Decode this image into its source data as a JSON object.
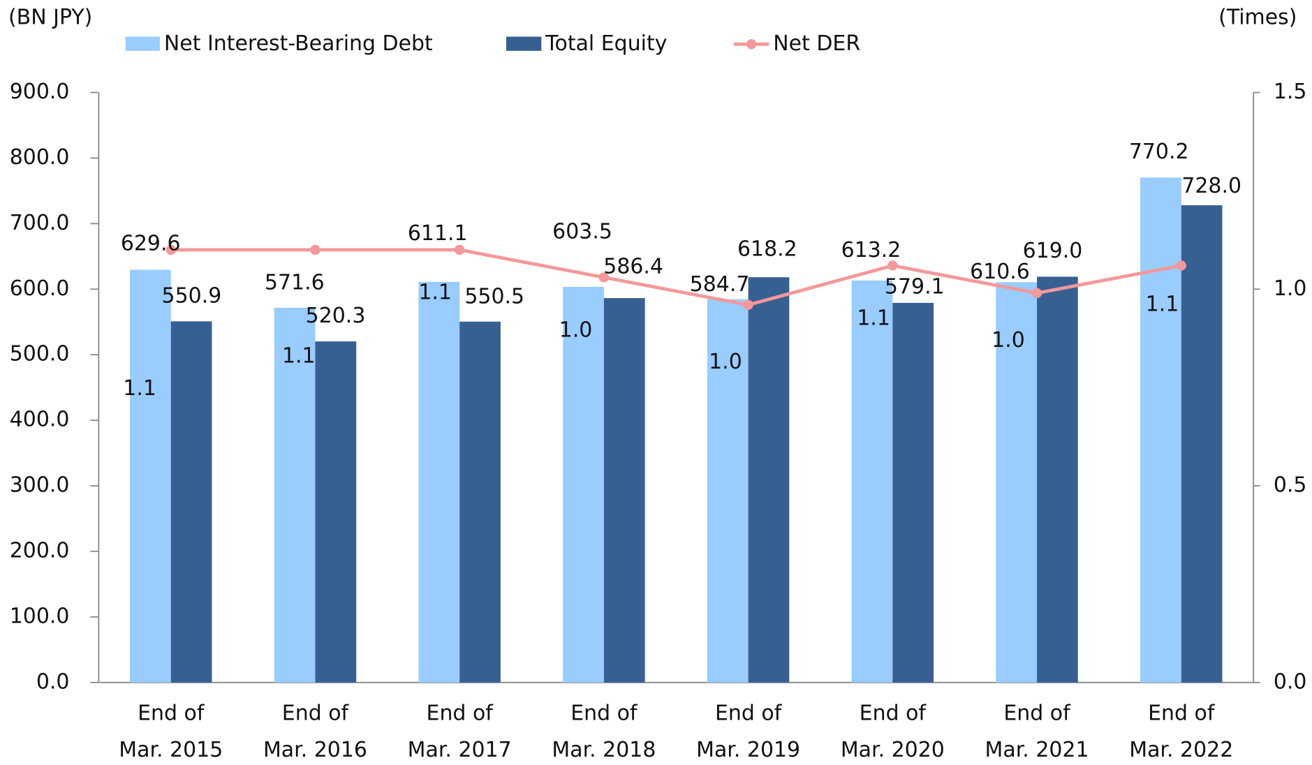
{
  "chart_data": {
    "type": "bar-line",
    "y_unit": "(BN JPY)",
    "y2_unit": "(Times)",
    "categories": [
      [
        "End of",
        "Mar. 2015"
      ],
      [
        "End of",
        "Mar. 2016"
      ],
      [
        "End of",
        "Mar. 2017"
      ],
      [
        "End of",
        "Mar. 2018"
      ],
      [
        "End of",
        "Mar. 2019"
      ],
      [
        "End of",
        "Mar. 2020"
      ],
      [
        "End of",
        "Mar. 2021"
      ],
      [
        "End of",
        "Mar. 2022"
      ]
    ],
    "series": [
      {
        "name": "Net Interest-Bearing Debt",
        "type": "bar",
        "color": "#99ccff",
        "values": [
          629.6,
          571.6,
          611.1,
          603.5,
          584.7,
          613.2,
          610.6,
          770.2
        ],
        "value_labels": [
          "629.6",
          "571.6",
          "611.1",
          "603.5",
          "584.7",
          "613.2",
          "610.6",
          "770.2"
        ]
      },
      {
        "name": "Total Equity",
        "type": "bar",
        "color": "#376092",
        "values": [
          550.9,
          520.3,
          550.5,
          586.4,
          618.2,
          579.1,
          619.0,
          728.0
        ],
        "value_labels": [
          "550.9",
          "520.3",
          "550.5",
          "586.4",
          "618.2",
          "579.1",
          "619.0",
          "728.0"
        ]
      },
      {
        "name": "Net DER",
        "type": "line",
        "axis": "y2",
        "color": "#f4989a",
        "values": [
          1.1,
          1.1,
          1.1,
          1.03,
          0.96,
          1.06,
          0.99,
          1.06
        ],
        "value_labels": [
          "1.1",
          "1.1",
          "1.1",
          "1.0",
          "1.0",
          "1.1",
          "1.0",
          "1.1"
        ]
      }
    ],
    "ylim": [
      0,
      900
    ],
    "yticks": [
      {
        "value": 0,
        "label": "0.0"
      },
      {
        "value": 100,
        "label": "100.0"
      },
      {
        "value": 200,
        "label": "200.0"
      },
      {
        "value": 300,
        "label": "300.0"
      },
      {
        "value": 400,
        "label": "400.0"
      },
      {
        "value": 500,
        "label": "500.0"
      },
      {
        "value": 600,
        "label": "600.0"
      },
      {
        "value": 700,
        "label": "700.0"
      },
      {
        "value": 800,
        "label": "800.0"
      },
      {
        "value": 900,
        "label": "900.0"
      }
    ],
    "y2lim": [
      0,
      1.5
    ],
    "y2ticks": [
      {
        "value": 0,
        "label": "0.0"
      },
      0.5,
      {
        "value": 1,
        "label": "1.0"
      },
      1.5
    ],
    "grid": false
  }
}
